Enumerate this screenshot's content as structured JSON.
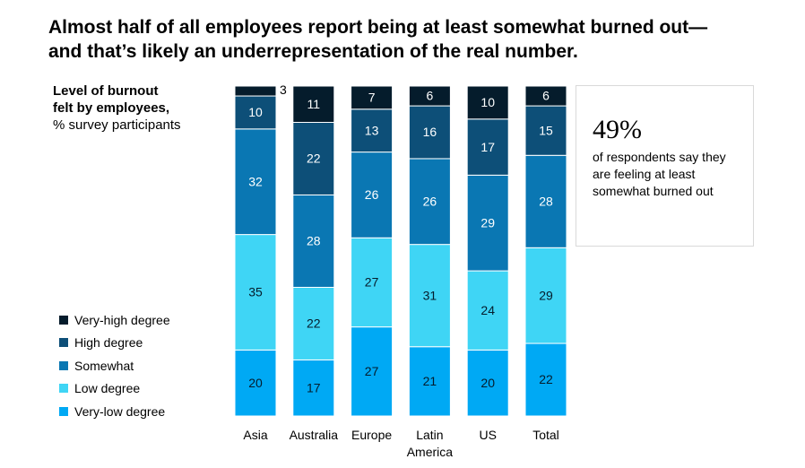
{
  "header": {
    "title_line1": "Almost half of all employees report being at least somewhat burned out—",
    "title_line2": "and that’s likely an underrepresentation of the real number."
  },
  "subtitle": {
    "bold_line1": "Level of burnout",
    "bold_line2": "felt by employees,",
    "normal_line": "% survey participants"
  },
  "callout": {
    "value": "49%",
    "text": "of respondents say they are feeling at least somewhat burned out"
  },
  "colors": {
    "very_low": "#00a9f4",
    "low": "#3fd5f5",
    "somewhat": "#0a77b3",
    "high": "#0d4f78",
    "very_high": "#051c2c"
  },
  "chart_data": {
    "type": "bar",
    "stacked": true,
    "orientation": "vertical",
    "categories": [
      "Asia",
      "Australia",
      "Europe",
      "Latin America",
      "US",
      "Total"
    ],
    "category_lines": [
      [
        "Asia"
      ],
      [
        "Australia"
      ],
      [
        "Europe"
      ],
      [
        "Latin",
        "America"
      ],
      [
        "US"
      ],
      [
        "Total"
      ]
    ],
    "series": [
      {
        "name": "Very-low degree",
        "color": "#00a9f4",
        "values": [
          20,
          17,
          27,
          21,
          20,
          22
        ]
      },
      {
        "name": "Low degree",
        "color": "#3fd5f5",
        "values": [
          35,
          22,
          27,
          31,
          24,
          29
        ]
      },
      {
        "name": "Somewhat",
        "color": "#0a77b3",
        "values": [
          32,
          28,
          26,
          26,
          29,
          28
        ]
      },
      {
        "name": "High degree",
        "color": "#0d4f78",
        "values": [
          10,
          22,
          13,
          16,
          17,
          15
        ]
      },
      {
        "name": "Very-high degree",
        "color": "#051c2c",
        "values": [
          3,
          11,
          7,
          6,
          10,
          6
        ]
      }
    ],
    "legend_order": [
      "Very-high degree",
      "High degree",
      "Somewhat",
      "Low degree",
      "Very-low degree"
    ],
    "legend_position": "left",
    "ylim": [
      0,
      100
    ],
    "grid": false,
    "xlabel": "",
    "ylabel": ""
  }
}
